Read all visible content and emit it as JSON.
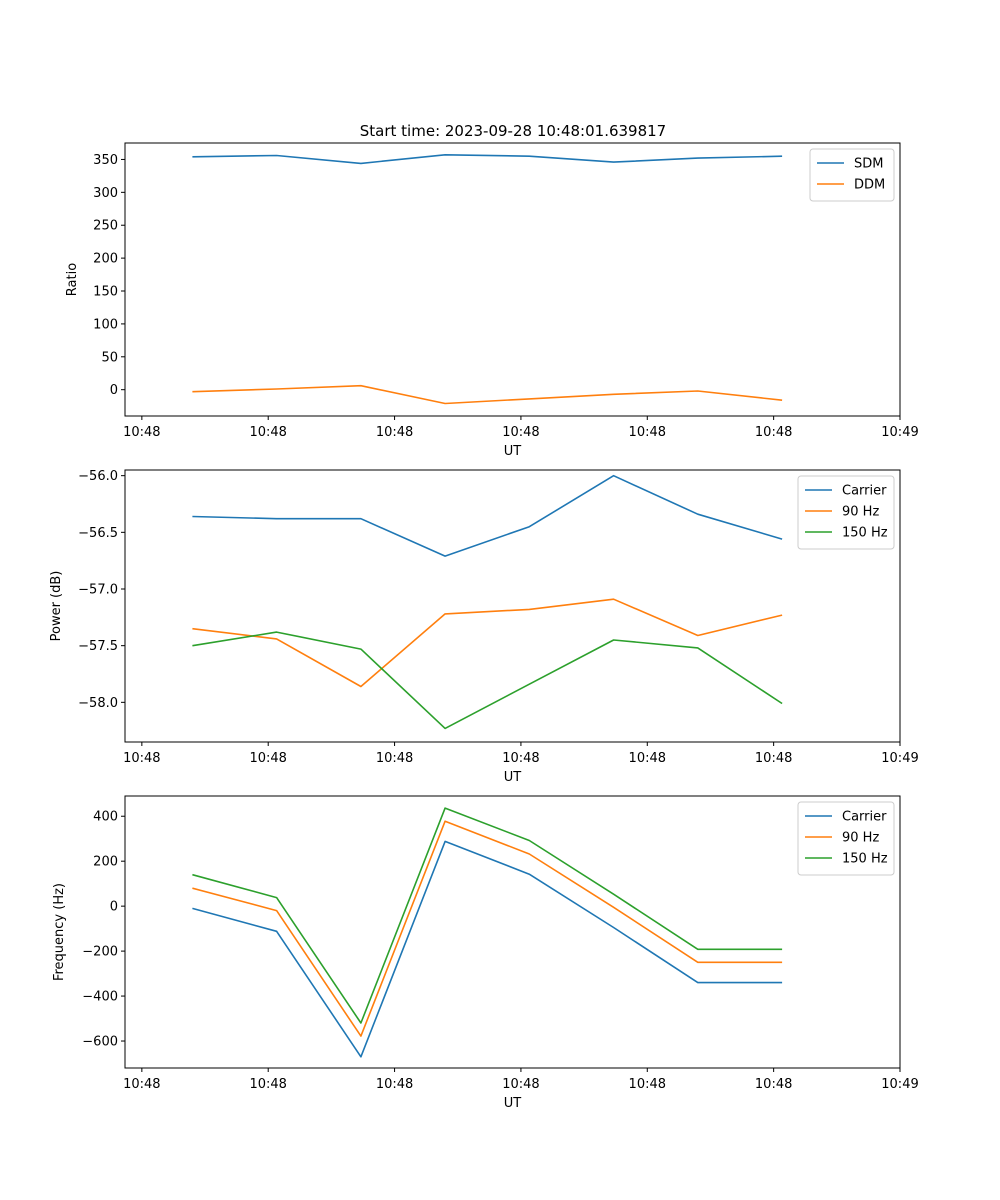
{
  "figure": {
    "title": "Start time: 2023-09-28 10:48:01.639817"
  },
  "chart_data": [
    {
      "type": "line",
      "title": "Start time: 2023-09-28 10:48:01.639817",
      "xlabel": "UT",
      "ylabel": "Ratio",
      "x": [
        1,
        2,
        3,
        4,
        5,
        6,
        7,
        8
      ],
      "xlim": [
        0.2,
        9.4
      ],
      "xticks": [
        0.4,
        1.9,
        3.4,
        4.9,
        6.4,
        7.9,
        9.4
      ],
      "xtick_labels": [
        "10:48",
        "10:48",
        "10:48",
        "10:48",
        "10:48",
        "10:48",
        "10:49"
      ],
      "ylim": [
        -40,
        375
      ],
      "yticks": [
        0,
        50,
        100,
        150,
        200,
        250,
        300,
        350
      ],
      "ytick_labels": [
        "0",
        "50",
        "100",
        "150",
        "200",
        "250",
        "300",
        "350"
      ],
      "legend_position": "top-right",
      "series": [
        {
          "name": "SDM",
          "color": "#1f77b4",
          "values": [
            354,
            356,
            344,
            357,
            355,
            346,
            352,
            355
          ]
        },
        {
          "name": "DDM",
          "color": "#ff7f0e",
          "values": [
            -3,
            1,
            6,
            -21,
            -14,
            -7,
            -2,
            -16
          ]
        }
      ]
    },
    {
      "type": "line",
      "title": "",
      "xlabel": "UT",
      "ylabel": "Power (dB)",
      "x": [
        1,
        2,
        3,
        4,
        5,
        6,
        7,
        8
      ],
      "xlim": [
        0.2,
        9.4
      ],
      "xticks": [
        0.4,
        1.9,
        3.4,
        4.9,
        6.4,
        7.9,
        9.4
      ],
      "xtick_labels": [
        "10:48",
        "10:48",
        "10:48",
        "10:48",
        "10:48",
        "10:48",
        "10:49"
      ],
      "ylim": [
        -58.35,
        -55.95
      ],
      "yticks": [
        -58.0,
        -57.5,
        -57.0,
        -56.5,
        -56.0
      ],
      "ytick_labels": [
        "−58.0",
        "−57.5",
        "−57.0",
        "−56.5",
        "−56.0"
      ],
      "legend_position": "top-right",
      "series": [
        {
          "name": "Carrier",
          "color": "#1f77b4",
          "values": [
            -56.36,
            -56.38,
            -56.38,
            -56.71,
            -56.45,
            -56.0,
            -56.34,
            -56.56
          ]
        },
        {
          "name": "90 Hz",
          "color": "#ff7f0e",
          "values": [
            -57.35,
            -57.44,
            -57.86,
            -57.22,
            -57.18,
            -57.09,
            -57.41,
            -57.23
          ]
        },
        {
          "name": "150 Hz",
          "color": "#2ca02c",
          "values": [
            -57.5,
            -57.38,
            -57.53,
            -58.23,
            -57.84,
            -57.45,
            -57.52,
            -58.01
          ]
        }
      ]
    },
    {
      "type": "line",
      "title": "",
      "xlabel": "UT",
      "ylabel": "Frequency (Hz)",
      "x": [
        1,
        2,
        3,
        4,
        5,
        6,
        7,
        8
      ],
      "xlim": [
        0.2,
        9.4
      ],
      "xticks": [
        0.4,
        1.9,
        3.4,
        4.9,
        6.4,
        7.9,
        9.4
      ],
      "xtick_labels": [
        "10:48",
        "10:48",
        "10:48",
        "10:48",
        "10:48",
        "10:48",
        "10:49"
      ],
      "ylim": [
        -720,
        490
      ],
      "yticks": [
        -600,
        -400,
        -200,
        0,
        200,
        400
      ],
      "ytick_labels": [
        "−600",
        "−400",
        "−200",
        "0",
        "200",
        "400"
      ],
      "legend_position": "top-right",
      "series": [
        {
          "name": "Carrier",
          "color": "#1f77b4",
          "values": [
            -10,
            -112,
            -670,
            288,
            142,
            -95,
            -340,
            -340
          ]
        },
        {
          "name": "90 Hz",
          "color": "#ff7f0e",
          "values": [
            80,
            -20,
            -578,
            378,
            232,
            -5,
            -250,
            -250
          ]
        },
        {
          "name": "150 Hz",
          "color": "#2ca02c",
          "values": [
            140,
            38,
            -520,
            436,
            292,
            53,
            -192,
            -192
          ]
        }
      ]
    }
  ]
}
